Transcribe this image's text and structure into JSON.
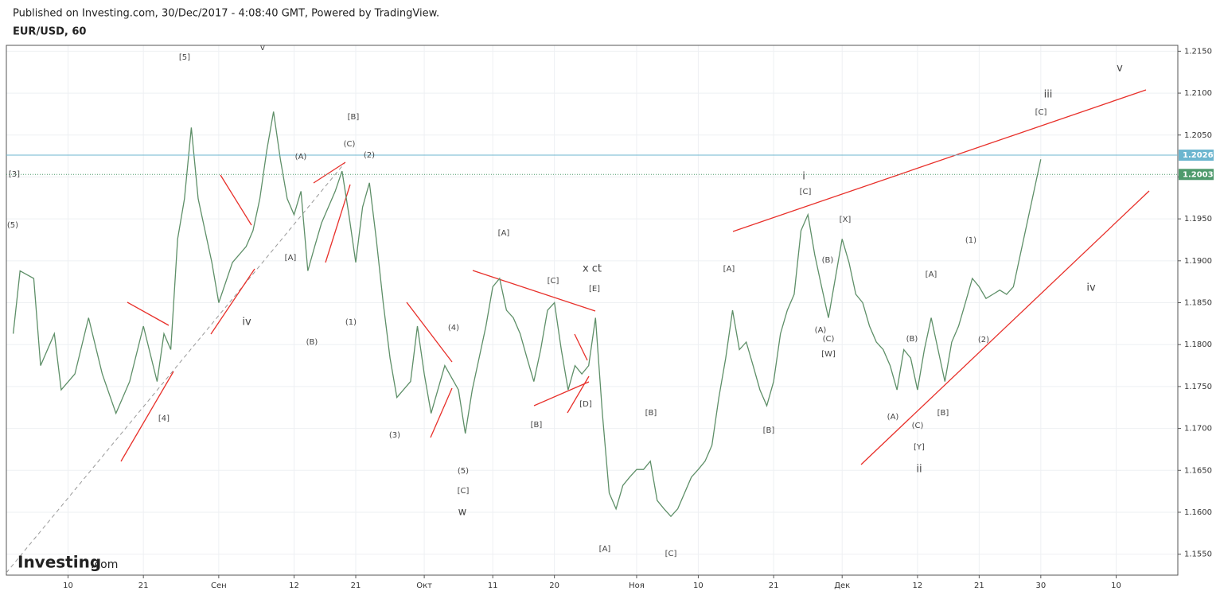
{
  "header": "Published on Investing.com, 30/Dec/2017 - 4:08:40 GMT, Powered by TradingView.",
  "logo": {
    "brand": "Investing",
    "suffix": ".com"
  },
  "chart_data": {
    "type": "line",
    "title": "EUR/USD, 60",
    "color": "#5e8f68",
    "grid": true,
    "x": [
      "2017-08-02",
      "2017-08-03",
      "2017-08-05",
      "2017-08-06",
      "2017-08-08",
      "2017-08-09",
      "2017-08-11",
      "2017-08-13",
      "2017-08-15",
      "2017-08-17",
      "2017-08-19",
      "2017-08-21",
      "2017-08-23",
      "2017-08-24",
      "2017-08-25",
      "2017-08-26",
      "2017-08-27",
      "2017-08-28",
      "2017-08-29",
      "2017-08-31",
      "2017-09-01",
      "2017-09-03",
      "2017-09-05",
      "2017-09-06",
      "2017-09-07",
      "2017-09-08",
      "2017-09-09",
      "2017-09-10",
      "2017-09-11",
      "2017-09-12",
      "2017-09-13",
      "2017-09-14",
      "2017-09-15",
      "2017-09-16",
      "2017-09-17",
      "2017-09-18",
      "2017-09-19",
      "2017-09-20",
      "2017-09-21",
      "2017-09-22",
      "2017-09-23",
      "2017-09-24",
      "2017-09-25",
      "2017-09-26",
      "2017-09-27",
      "2017-09-29",
      "2017-09-30",
      "2017-10-01",
      "2017-10-02",
      "2017-10-04",
      "2017-10-06",
      "2017-10-07",
      "2017-10-08",
      "2017-10-09",
      "2017-10-10",
      "2017-10-11",
      "2017-10-12",
      "2017-10-13",
      "2017-10-14",
      "2017-10-15",
      "2017-10-16",
      "2017-10-17",
      "2017-10-18",
      "2017-10-19",
      "2017-10-20",
      "2017-10-21",
      "2017-10-22",
      "2017-10-23",
      "2017-10-24",
      "2017-10-25",
      "2017-10-26",
      "2017-10-27",
      "2017-10-28",
      "2017-10-29",
      "2017-10-30",
      "2017-10-31",
      "2017-11-01",
      "2017-11-02",
      "2017-11-03",
      "2017-11-04",
      "2017-11-05",
      "2017-11-06",
      "2017-11-07",
      "2017-11-08",
      "2017-11-09",
      "2017-11-10",
      "2017-11-11",
      "2017-11-12",
      "2017-11-13",
      "2017-11-14",
      "2017-11-15",
      "2017-11-16",
      "2017-11-17",
      "2017-11-18",
      "2017-11-19",
      "2017-11-20",
      "2017-11-21",
      "2017-11-22",
      "2017-11-23",
      "2017-11-24",
      "2017-11-25",
      "2017-11-26",
      "2017-11-27",
      "2017-11-28",
      "2017-11-29",
      "2017-11-30",
      "2017-12-01",
      "2017-12-02",
      "2017-12-03",
      "2017-12-04",
      "2017-12-05",
      "2017-12-06",
      "2017-12-07",
      "2017-12-08",
      "2017-12-09",
      "2017-12-10",
      "2017-12-11",
      "2017-12-12",
      "2017-12-13",
      "2017-12-14",
      "2017-12-15",
      "2017-12-16",
      "2017-12-17",
      "2017-12-18",
      "2017-12-19",
      "2017-12-20",
      "2017-12-21",
      "2017-12-22",
      "2017-12-23",
      "2017-12-24",
      "2017-12-25",
      "2017-12-26",
      "2017-12-27",
      "2017-12-28",
      "2017-12-29",
      "2017-12-30"
    ],
    "values": [
      1.1813,
      1.1888,
      1.1879,
      1.1775,
      1.1813,
      1.1746,
      1.1765,
      1.1832,
      1.1765,
      1.1718,
      1.1756,
      1.1822,
      1.1756,
      1.1813,
      1.1794,
      1.1926,
      1.1974,
      1.2059,
      1.1974,
      1.1898,
      1.185,
      1.1898,
      1.1917,
      1.1936,
      1.1974,
      1.2031,
      1.2078,
      1.2021,
      1.1974,
      1.1955,
      1.1983,
      1.1888,
      1.1917,
      1.1945,
      1.1964,
      1.1983,
      1.2007,
      1.1955,
      1.1898,
      1.1964,
      1.1993,
      1.1926,
      1.185,
      1.1784,
      1.1737,
      1.1756,
      1.1822,
      1.1765,
      1.1718,
      1.1775,
      1.1746,
      1.1694,
      1.1746,
      1.1784,
      1.1822,
      1.1869,
      1.1879,
      1.1841,
      1.1832,
      1.1813,
      1.1784,
      1.1756,
      1.1794,
      1.1841,
      1.185,
      1.1794,
      1.1746,
      1.1775,
      1.1765,
      1.1775,
      1.1832,
      1.1718,
      1.1623,
      1.1604,
      1.1632,
      1.1642,
      1.1651,
      1.1651,
      1.1661,
      1.1614,
      1.1604,
      1.1595,
      1.1604,
      1.1623,
      1.1642,
      1.1651,
      1.1661,
      1.168,
      1.1737,
      1.1784,
      1.1841,
      1.1794,
      1.1803,
      1.1775,
      1.1746,
      1.1727,
      1.1756,
      1.1813,
      1.1841,
      1.186,
      1.1936,
      1.1955,
      1.1907,
      1.1869,
      1.1832,
      1.1879,
      1.1926,
      1.1898,
      1.186,
      1.185,
      1.1822,
      1.1803,
      1.1794,
      1.1775,
      1.1746,
      1.1794,
      1.1784,
      1.1746,
      1.1794,
      1.1832,
      1.1794,
      1.1756,
      1.1803,
      1.1822,
      1.185,
      1.1879,
      1.1869,
      1.1855,
      1.186,
      1.1865,
      1.186,
      1.1869,
      1.1907,
      1.1945,
      1.1983,
      1.2021
    ],
    "xlim": [
      "2017-08-01",
      "2018-01-19"
    ],
    "xticks": [
      {
        "value": "2017-08-10",
        "label": "10"
      },
      {
        "value": "2017-08-21",
        "label": "21"
      },
      {
        "value": "2017-09-01",
        "label": "Сен"
      },
      {
        "value": "2017-09-12",
        "label": "12"
      },
      {
        "value": "2017-09-21",
        "label": "21"
      },
      {
        "value": "2017-10-01",
        "label": "Окт"
      },
      {
        "value": "2017-10-11",
        "label": "11"
      },
      {
        "value": "2017-10-20",
        "label": "20"
      },
      {
        "value": "2017-11-01",
        "label": "Ноя"
      },
      {
        "value": "2017-11-10",
        "label": "10"
      },
      {
        "value": "2017-11-21",
        "label": "21"
      },
      {
        "value": "2017-12-01",
        "label": "Дек"
      },
      {
        "value": "2017-12-12",
        "label": "12"
      },
      {
        "value": "2017-12-21",
        "label": "21"
      },
      {
        "value": "2017-12-30",
        "label": "30"
      },
      {
        "value": "2018-01-10",
        "label": "10"
      }
    ],
    "ylim": [
      1.1525,
      1.2157
    ],
    "yticks": [
      {
        "value": 1.155,
        "label": "1.1550"
      },
      {
        "value": 1.16,
        "label": "1.1600"
      },
      {
        "value": 1.165,
        "label": "1.1650"
      },
      {
        "value": 1.17,
        "label": "1.1700"
      },
      {
        "value": 1.175,
        "label": "1.1750"
      },
      {
        "value": 1.18,
        "label": "1.1800"
      },
      {
        "value": 1.185,
        "label": "1.1850"
      },
      {
        "value": 1.19,
        "label": "1.1900"
      },
      {
        "value": 1.195,
        "label": "1.1950"
      },
      {
        "value": 1.2,
        "label": "1.2000"
      },
      {
        "value": 1.205,
        "label": "1.2050"
      },
      {
        "value": 1.21,
        "label": "1.2100"
      },
      {
        "value": 1.215,
        "label": "1.2150"
      }
    ],
    "price_lines": [
      {
        "value": 1.2026,
        "color": "#6cb6cf",
        "style": "solid"
      },
      {
        "value": 1.2003,
        "color": "#4e9a6c",
        "style": "dotted"
      }
    ],
    "annotations": [
      "[5]",
      "v",
      "[3]",
      "(5)",
      "(A)",
      "[B]",
      "(C)",
      "(2)",
      "[A]",
      "iv",
      "(B)",
      "(1)",
      "[4]",
      "[A]",
      "x ct",
      "[E]",
      "[C]",
      "(4)",
      "(3)",
      "(5)",
      "[C]",
      "w",
      "[B]",
      "[D]",
      "[B]",
      "[A]",
      "[C]",
      "[A]",
      "[B]",
      "i",
      "[C]",
      "[X]",
      "(B)",
      "(A)",
      "(C)",
      "[W]",
      "(A)",
      "(B)",
      "(C)",
      "[Y]",
      "ii",
      "[A]",
      "[B]",
      "(1)",
      "(2)",
      "[C]",
      "iii",
      "v",
      "iv"
    ]
  }
}
